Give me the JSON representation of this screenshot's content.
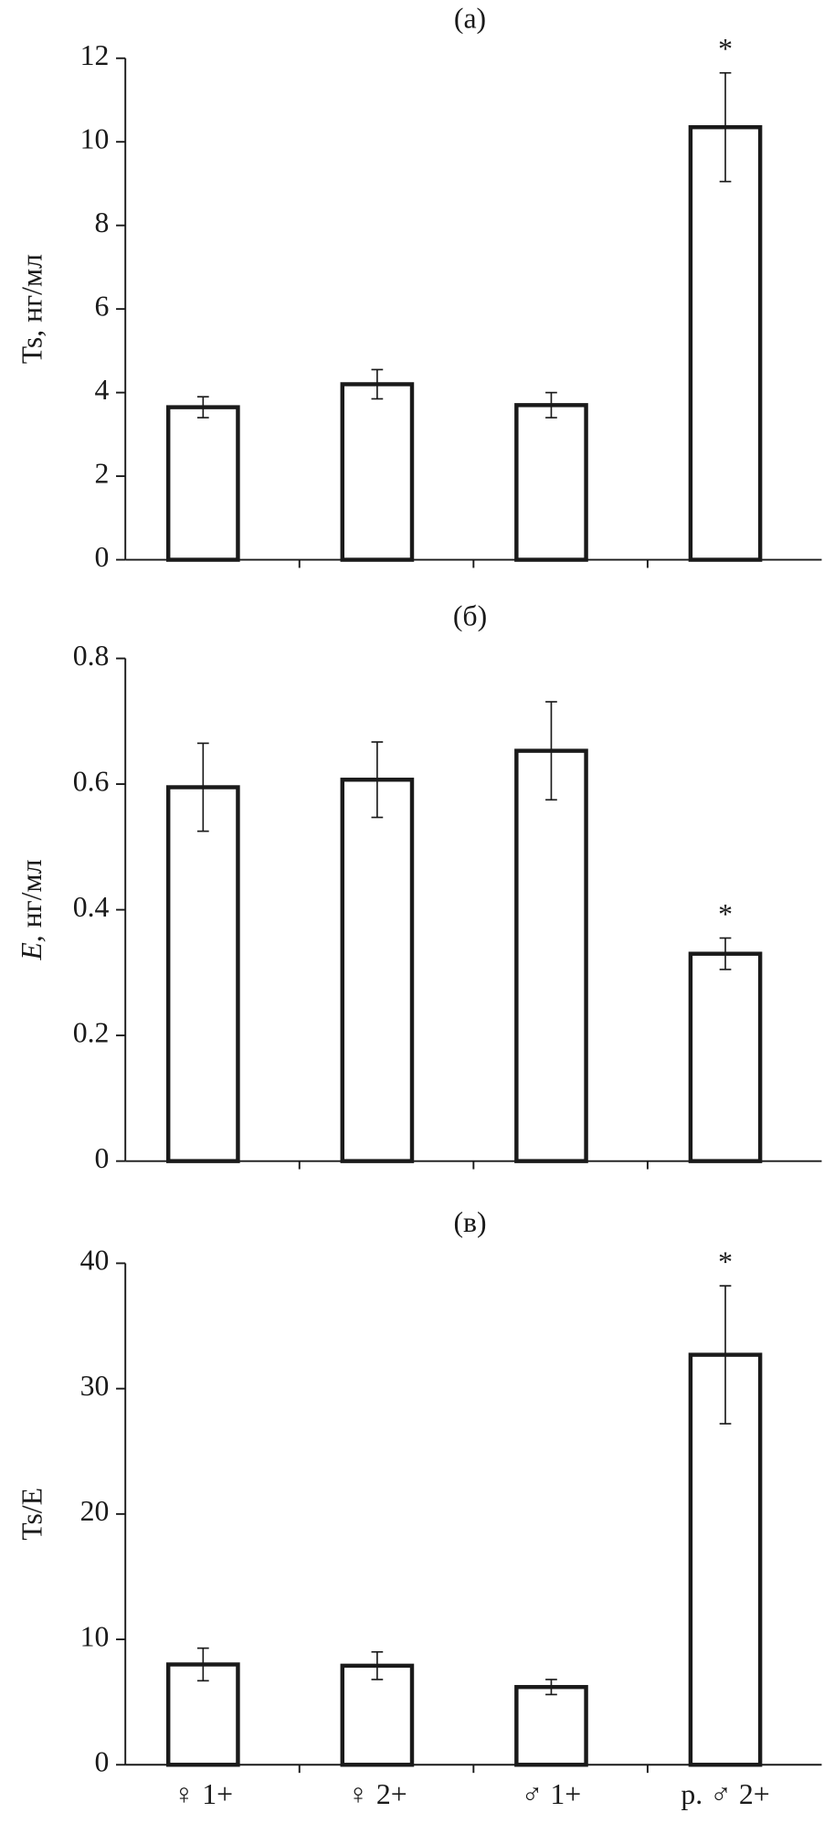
{
  "chart_data": [
    {
      "type": "bar",
      "title": "(а)",
      "y_label": "Ts, нг/мл",
      "y_label_italic": false,
      "categories": [
        null,
        null,
        null,
        null
      ],
      "values": [
        3.65,
        4.2,
        3.7,
        10.35
      ],
      "errors": [
        0.25,
        0.35,
        0.3,
        1.3
      ],
      "annotations": [
        null,
        null,
        null,
        "*"
      ],
      "color": "#ffffff",
      "edge_color": "#1a1a1a",
      "ylim": [
        0,
        12
      ],
      "yticks": [
        0,
        2,
        4,
        6,
        8,
        10,
        12
      ],
      "grid": false
    },
    {
      "type": "bar",
      "title": "(б)",
      "y_label": "нг/мл",
      "y_label_prefix": "E",
      "y_label_italic": true,
      "categories": [
        null,
        null,
        null,
        null
      ],
      "values": [
        0.595,
        0.607,
        0.653,
        0.33
      ],
      "errors": [
        0.07,
        0.06,
        0.078,
        0.025
      ],
      "annotations": [
        null,
        null,
        null,
        "*"
      ],
      "color": "#ffffff",
      "edge_color": "#1a1a1a",
      "ylim": [
        0,
        0.8
      ],
      "yticks": [
        0,
        0.2,
        0.4,
        0.6,
        0.8
      ],
      "grid": false
    },
    {
      "type": "bar",
      "title": "(в)",
      "y_label": "Ts/E",
      "y_label_italic": false,
      "categories": [
        "♀ 1+",
        "♀ 2+",
        "♂ 1+",
        "р. ♂ 2+"
      ],
      "values": [
        8.0,
        7.9,
        6.2,
        32.7
      ],
      "errors": [
        1.3,
        1.1,
        0.6,
        5.5
      ],
      "annotations": [
        null,
        null,
        null,
        "*"
      ],
      "color": "#ffffff",
      "edge_color": "#1a1a1a",
      "ylim": [
        0,
        40
      ],
      "yticks": [
        0,
        10,
        20,
        30,
        40
      ],
      "grid": false
    }
  ]
}
